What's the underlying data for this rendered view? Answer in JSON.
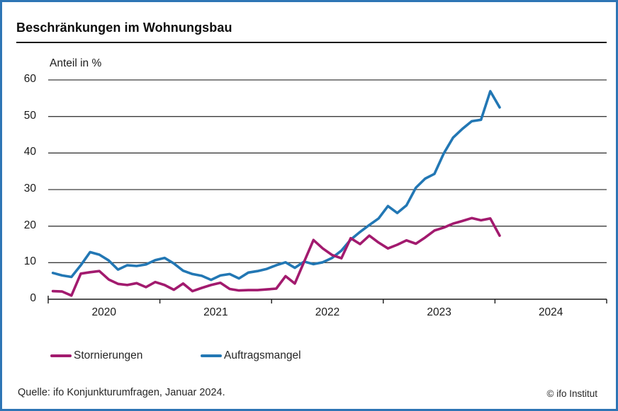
{
  "title": "Beschränkungen im Wohnungsbau",
  "source": "Quelle: ifo Konjunkturumfragen, Januar 2024.",
  "copyright": "© ifo Institut",
  "colors": {
    "frame_border": "#2e75b5",
    "grid_line": "#3d3d3d",
    "axis_line": "#1a1a1a",
    "stornierungen": "#a21a6e",
    "auftragsmangel": "#2277b4"
  },
  "chart_data": {
    "type": "line",
    "title": "Beschränkungen im Wohnungsbau",
    "ylabel": "Anteil in %",
    "xlabel": "",
    "ylim": [
      0,
      60
    ],
    "yticks": [
      0,
      10,
      20,
      30,
      40,
      50,
      60
    ],
    "x_labels": [
      "2020",
      "2021",
      "2022",
      "2023",
      "2024"
    ],
    "x_range": {
      "start": "2020-01",
      "end": "2024-01",
      "frequency": "monthly"
    },
    "grid": true,
    "legend_position": "bottom",
    "series": [
      {
        "name": "Stornierungen",
        "color": "#a21a6e",
        "values": [
          2.2,
          2.1,
          1.0,
          7.0,
          7.4,
          7.7,
          5.4,
          4.2,
          3.9,
          4.4,
          3.3,
          4.7,
          3.9,
          2.6,
          4.3,
          2.2,
          3.1,
          3.9,
          4.5,
          2.8,
          2.4,
          2.5,
          2.5,
          2.7,
          2.9,
          6.3,
          4.3,
          10.3,
          16.2,
          13.9,
          12.1,
          11.2,
          16.7,
          15.1,
          17.4,
          15.5,
          13.9,
          14.9,
          16.1,
          15.2,
          16.9,
          18.8,
          19.6,
          20.7,
          21.4,
          22.2,
          21.6,
          22.1,
          17.4
        ]
      },
      {
        "name": "Auftragsmangel",
        "color": "#2277b4",
        "values": [
          7.2,
          6.5,
          6.1,
          9.3,
          12.9,
          12.2,
          10.6,
          8.1,
          9.3,
          9.1,
          9.5,
          10.7,
          11.3,
          9.8,
          7.8,
          6.9,
          6.4,
          5.3,
          6.5,
          6.9,
          5.7,
          7.3,
          7.7,
          8.3,
          9.3,
          10.1,
          8.6,
          10.3,
          9.6,
          10.1,
          11.3,
          13.3,
          16.3,
          18.4,
          20.3,
          22.1,
          25.5,
          23.6,
          25.7,
          30.5,
          33.0,
          34.3,
          39.9,
          44.2,
          46.6,
          48.7,
          49.1,
          56.9,
          52.5
        ]
      }
    ]
  }
}
